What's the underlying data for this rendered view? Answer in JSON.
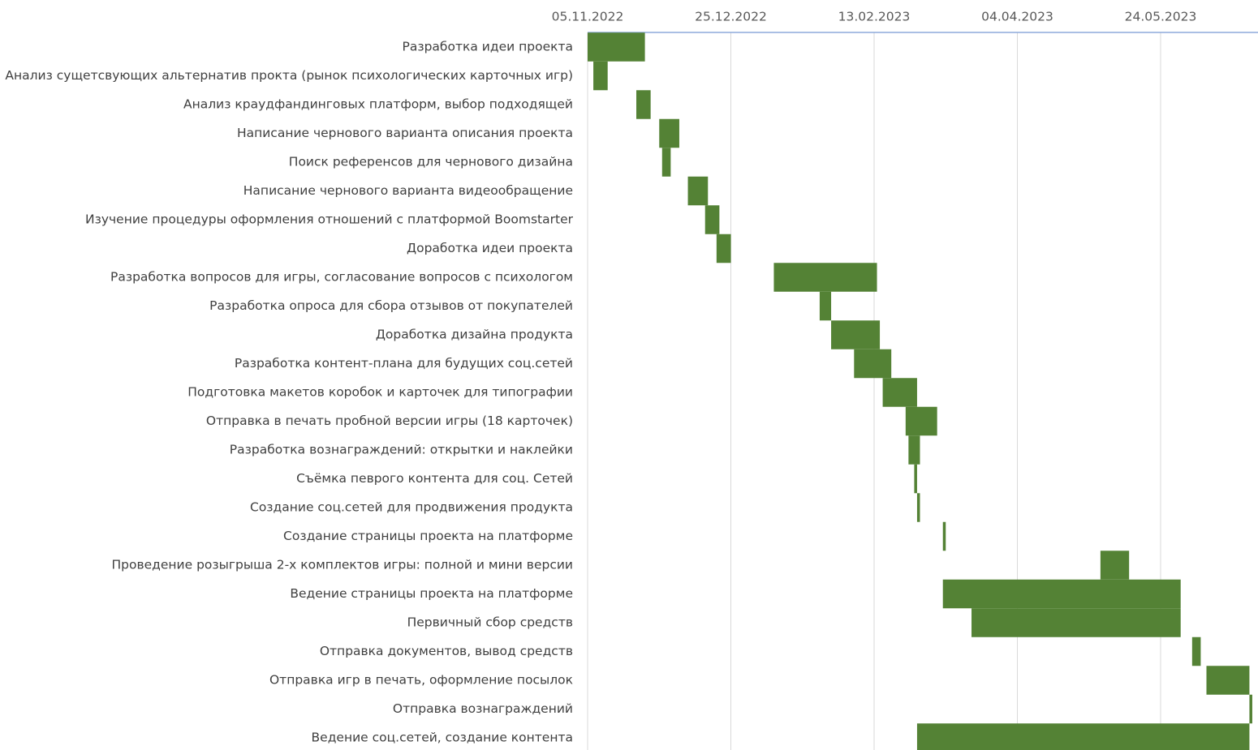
{
  "chart_data": {
    "type": "bar",
    "orientation": "horizontal-gantt",
    "x_axis": {
      "position": "top",
      "tick_labels": [
        "05.11.2022",
        "25.12.2022",
        "13.02.2023",
        "04.04.2023",
        "24.05.2023"
      ],
      "tick_values": [
        "2022-11-05",
        "2022-12-25",
        "2023-02-13",
        "2023-04-04",
        "2023-05-24"
      ],
      "range": [
        "2022-11-05",
        "2023-06-28"
      ]
    },
    "grid": true,
    "legend": "none",
    "colors": {
      "bar": "#548235"
    },
    "tasks": [
      {
        "label": "Разработка идеи проекта",
        "start": "2022-11-05",
        "end": "2022-11-25"
      },
      {
        "label": "Анализ сущетсвующих альтернатив прокта (рынок психологических карточных игр)",
        "start": "2022-11-07",
        "end": "2022-11-12"
      },
      {
        "label": "Анализ краудфандинговых платформ, выбор подходящей",
        "start": "2022-11-22",
        "end": "2022-11-27"
      },
      {
        "label": "Написание чернового варианта описания проекта",
        "start": "2022-11-30",
        "end": "2022-12-07"
      },
      {
        "label": "Поиск референсов для чернового дизайна",
        "start": "2022-12-01",
        "end": "2022-12-04"
      },
      {
        "label": "Написание чернового варианта видеообращение",
        "start": "2022-12-10",
        "end": "2022-12-17"
      },
      {
        "label": "Изучение процедуры оформления отношений с платформой Boomstarter",
        "start": "2022-12-16",
        "end": "2022-12-21"
      },
      {
        "label": "Доработка идеи проекта",
        "start": "2022-12-20",
        "end": "2022-12-25"
      },
      {
        "label": "Разработка вопросов для игры, согласование вопросов с психологом",
        "start": "2023-01-09",
        "end": "2023-02-14"
      },
      {
        "label": "Разработка опроса для сбора отзывов от покупателей",
        "start": "2023-01-25",
        "end": "2023-01-29"
      },
      {
        "label": "Доработка дизайна продукта",
        "start": "2023-01-29",
        "end": "2023-02-15"
      },
      {
        "label": "Разработка контент-плана  для будущих соц.сетей",
        "start": "2023-02-06",
        "end": "2023-02-19"
      },
      {
        "label": "Подготовка макетов коробок и карточек для типографии",
        "start": "2023-02-16",
        "end": "2023-02-28"
      },
      {
        "label": "Отправка в печать пробной версии игры (18 карточек)",
        "start": "2023-02-24",
        "end": "2023-03-07"
      },
      {
        "label": "Разработка вознаграждений: открытки и наклейки",
        "start": "2023-02-25",
        "end": "2023-03-01"
      },
      {
        "label": "Съёмка певрого контента для соц. Сетей",
        "start": "2023-02-27",
        "end": "2023-02-28"
      },
      {
        "label": "Создание соц.сетей для продвижения продукта",
        "start": "2023-02-28",
        "end": "2023-03-01"
      },
      {
        "label": "Создание страницы проекта на платформе",
        "start": "2023-03-09",
        "end": "2023-03-10"
      },
      {
        "label": "Проведение розыгрыша 2-х комплектов игры: полной и мини версии",
        "start": "2023-05-03",
        "end": "2023-05-13"
      },
      {
        "label": "Ведение страницы проекта на платформе",
        "start": "2023-03-09",
        "end": "2023-05-31"
      },
      {
        "label": "Первичный сбор средств",
        "start": "2023-03-19",
        "end": "2023-05-31"
      },
      {
        "label": "Отправка документов, вывод средств",
        "start": "2023-06-04",
        "end": "2023-06-07"
      },
      {
        "label": "Отправка игр в печать, оформление посылок",
        "start": "2023-06-09",
        "end": "2023-06-24"
      },
      {
        "label": "Отправка вознаграждений",
        "start": "2023-06-24",
        "end": "2023-06-25"
      },
      {
        "label": "Ведение соц.сетей, создание контента",
        "start": "2023-02-28",
        "end": "2023-06-24"
      }
    ]
  }
}
